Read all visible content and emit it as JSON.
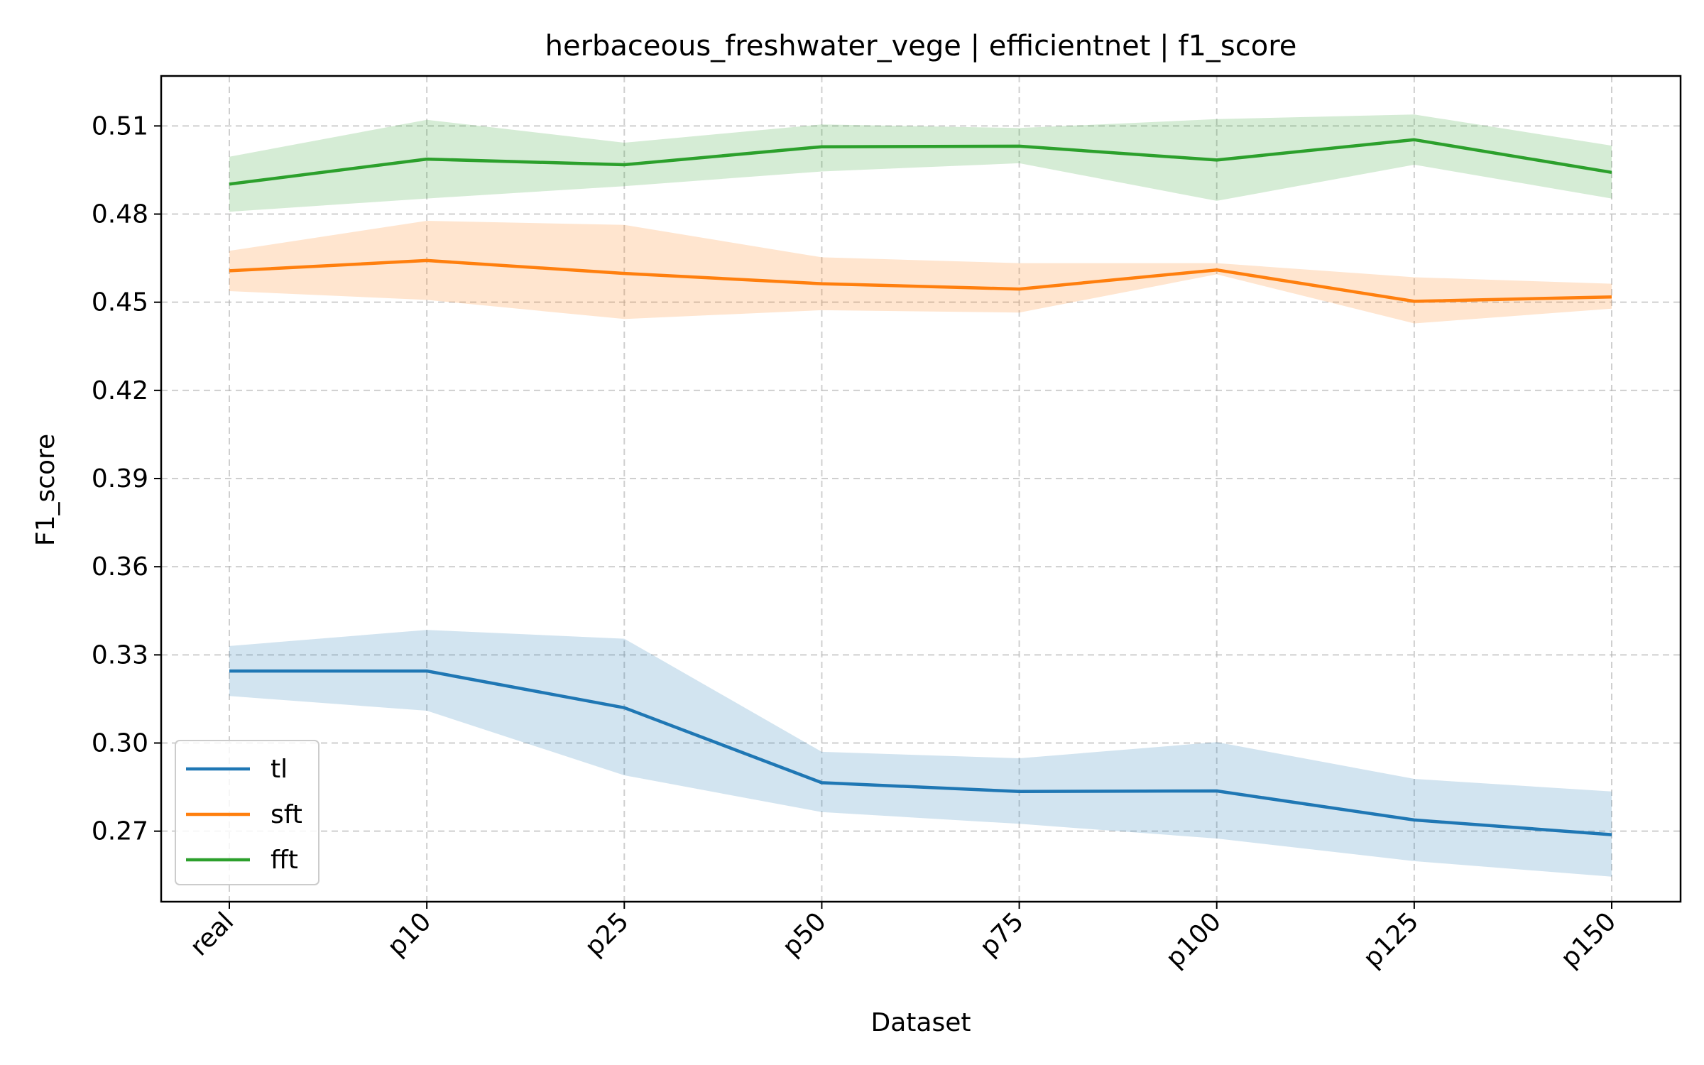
{
  "chart_data": {
    "type": "line",
    "title": "herbaceous_freshwater_vege | efficientnet | f1_score",
    "xlabel": "Dataset",
    "ylabel": "F1_score",
    "categories": [
      "real",
      "p10",
      "p25",
      "p50",
      "p75",
      "p100",
      "p125",
      "p150"
    ],
    "yticks": [
      "0.27",
      "0.30",
      "0.33",
      "0.36",
      "0.39",
      "0.42",
      "0.45",
      "0.48",
      "0.51"
    ],
    "ylim": [
      0.246,
      0.527
    ],
    "grid": true,
    "legend_position": "lower-left",
    "series": [
      {
        "name": "tl",
        "color": "#1f77b4",
        "band_color": "#1f77b4",
        "values": [
          0.3245,
          0.3245,
          0.312,
          0.2865,
          0.2835,
          0.2837,
          0.2738,
          0.2688
        ],
        "lower": [
          0.316,
          0.311,
          0.289,
          0.2765,
          0.2725,
          0.2675,
          0.2598,
          0.2545
        ],
        "upper": [
          0.333,
          0.3385,
          0.3355,
          0.297,
          0.2948,
          0.3003,
          0.2878,
          0.2835
        ]
      },
      {
        "name": "sft",
        "color": "#ff7f0e",
        "band_color": "#ff7f0e",
        "values": [
          0.4607,
          0.4642,
          0.4598,
          0.4563,
          0.4545,
          0.461,
          0.4503,
          0.4518
        ],
        "lower": [
          0.4538,
          0.4508,
          0.4443,
          0.4473,
          0.4465,
          0.4595,
          0.4428,
          0.4478
        ],
        "upper": [
          0.4675,
          0.4777,
          0.4763,
          0.4653,
          0.4633,
          0.4633,
          0.4585,
          0.4563
        ]
      },
      {
        "name": "fft",
        "color": "#2ca02c",
        "band_color": "#2ca02c",
        "values": [
          0.4902,
          0.4987,
          0.4968,
          0.5029,
          0.5031,
          0.4984,
          0.5053,
          0.4942
        ],
        "lower": [
          0.4808,
          0.4853,
          0.4895,
          0.4945,
          0.4973,
          0.4845,
          0.4968,
          0.4853
        ],
        "upper": [
          0.4995,
          0.5121,
          0.5043,
          0.5105,
          0.5093,
          0.5123,
          0.5139,
          0.5033
        ]
      }
    ]
  }
}
